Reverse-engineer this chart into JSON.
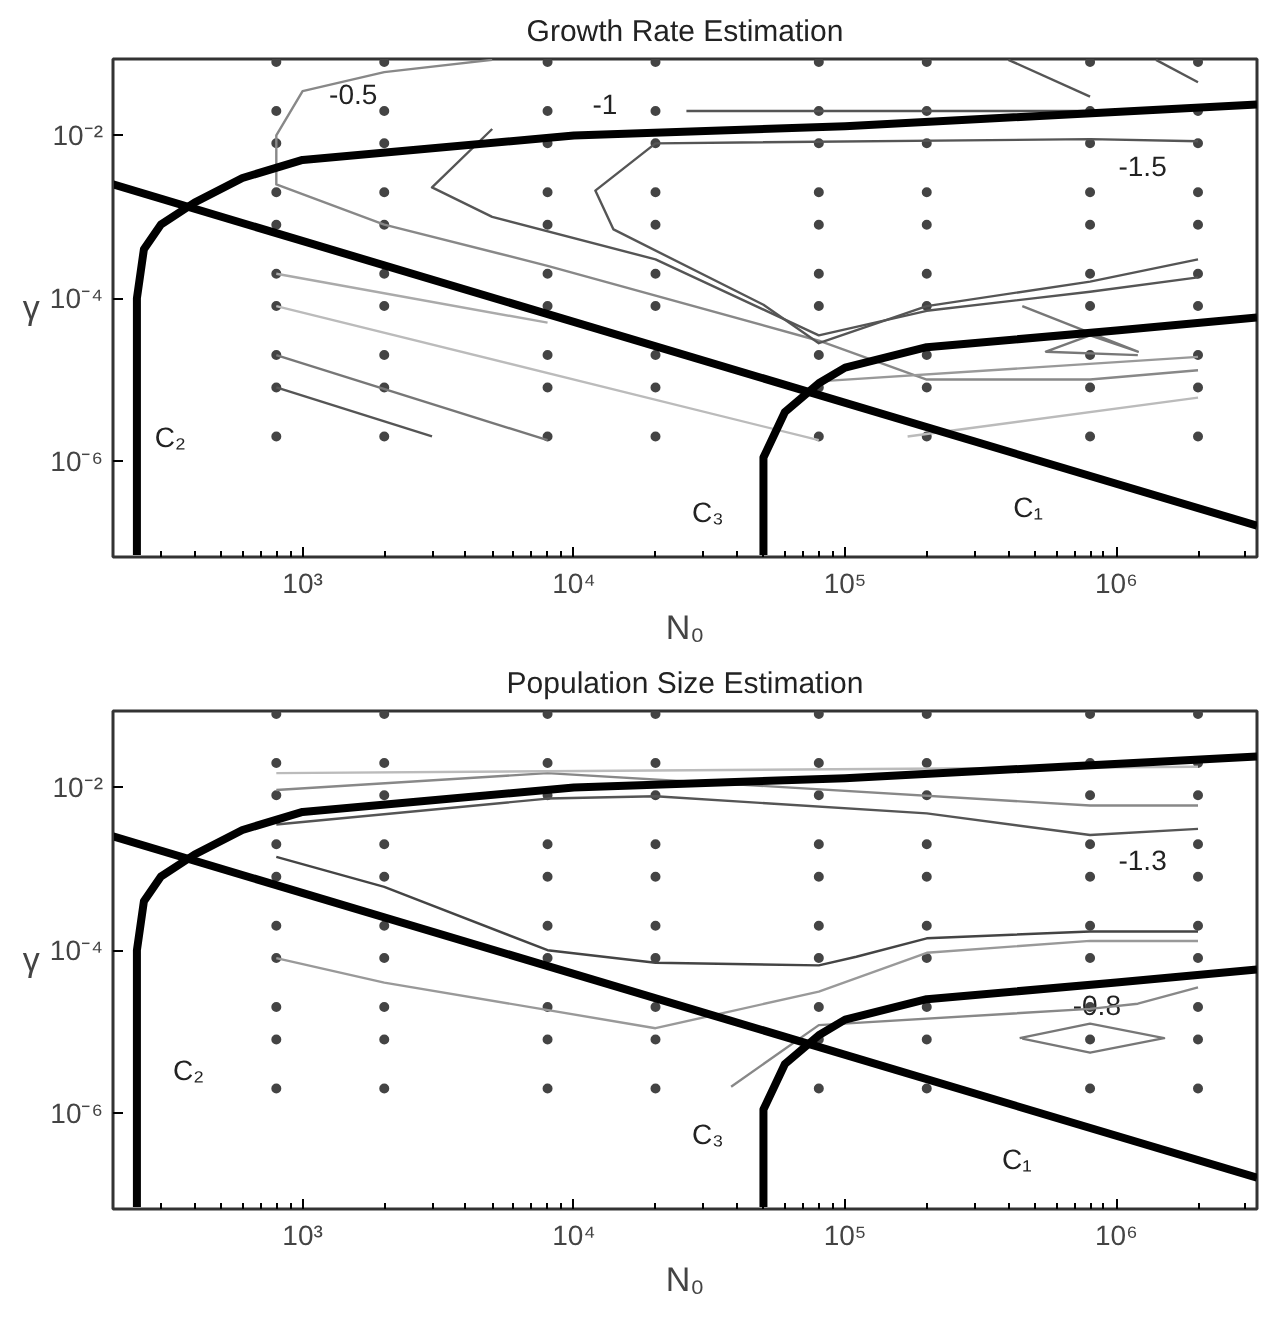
{
  "chart_data": [
    {
      "type": "line",
      "title": "Growth Rate Estimation",
      "xlabel": "N₀",
      "ylabel": "γ",
      "log": "xy",
      "grid": false,
      "marker": "none",
      "line_style": "solid",
      "xlim": [
        200,
        3300000
      ],
      "ylim": [
        6.6e-08,
        0.087
      ],
      "xticks": [
        {
          "value": 1000,
          "label": "10³"
        },
        {
          "value": 10000,
          "label": "10⁴"
        },
        {
          "value": 100000,
          "label": "10⁵"
        },
        {
          "value": 1000000,
          "label": "10⁶"
        }
      ],
      "yticks": [
        {
          "value": 0.01,
          "label": "10⁻²"
        },
        {
          "value": 0.0001,
          "label": "10⁻⁴"
        },
        {
          "value": 1e-06,
          "label": "10⁻⁶"
        }
      ],
      "annotations": [
        "-0.5",
        "-1",
        "-1.5",
        "C₂",
        "C₃",
        "C₁"
      ],
      "series": [
        {
          "type": "scatter",
          "marker": "circle",
          "color": "#444444",
          "x": [
            800,
            2000,
            8000,
            20000,
            80000,
            200000,
            800000,
            2000000,
            800,
            2000,
            8000,
            20000,
            80000,
            200000,
            800000,
            2000000,
            800,
            2000,
            8000,
            20000,
            80000,
            200000,
            800000,
            2000000,
            800,
            2000,
            8000,
            20000,
            80000,
            200000,
            800000,
            2000000,
            800,
            2000,
            8000,
            20000,
            80000,
            200000,
            800000,
            2000000,
            800,
            2000,
            8000,
            20000,
            80000,
            200000,
            800000,
            2000000,
            800,
            2000,
            8000,
            20000,
            80000,
            200000,
            800000,
            2000000,
            800,
            2000,
            8000,
            20000,
            80000,
            200000,
            800000,
            2000000,
            800,
            2000,
            8000,
            20000,
            80000,
            200000,
            800000,
            2000000,
            800,
            2000,
            8000,
            20000,
            80000,
            200000,
            800000,
            2000000
          ],
          "values": [
            0.08,
            0.08,
            0.08,
            0.08,
            0.08,
            0.08,
            0.08,
            0.08,
            0.02,
            0.02,
            0.02,
            0.02,
            0.02,
            0.02,
            0.02,
            0.02,
            0.008,
            0.008,
            0.008,
            0.008,
            0.008,
            0.008,
            0.008,
            0.008,
            0.002,
            0.002,
            0.002,
            0.002,
            0.002,
            0.002,
            0.002,
            0.002,
            0.0008,
            0.0008,
            0.0008,
            0.0008,
            0.0008,
            0.0008,
            0.0008,
            0.0008,
            0.0002,
            0.0002,
            0.0002,
            0.0002,
            0.0002,
            0.0002,
            0.0002,
            0.0002,
            8e-05,
            8e-05,
            8e-05,
            8e-05,
            8e-05,
            8e-05,
            8e-05,
            8e-05,
            2e-05,
            2e-05,
            2e-05,
            2e-05,
            2e-05,
            2e-05,
            2e-05,
            2e-05,
            8e-06,
            8e-06,
            8e-06,
            8e-06,
            8e-06,
            8e-06,
            8e-06,
            8e-06,
            2e-06,
            2e-06,
            2e-06,
            2e-06,
            2e-06,
            2e-06,
            2e-06,
            2e-06
          ]
        },
        {
          "color": "#888888",
          "x": [
            5000,
            2000,
            1000,
            800,
            800,
            2000,
            8000,
            80000,
            200000,
            800000,
            2000000
          ],
          "values": [
            0.085,
            0.06,
            0.035,
            0.01,
            0.0025,
            0.0008,
            0.00025,
            3e-05,
            1e-05,
            1e-05,
            1.3e-05
          ]
        },
        {
          "color": "#555555",
          "x": [
            5000,
            3000,
            5000,
            20000,
            80000,
            200000,
            800000,
            2000000
          ],
          "values": [
            0.012,
            0.0023,
            0.001,
            0.0003,
            3.5e-05,
            7e-05,
            0.00012,
            0.00018
          ]
        },
        {
          "color": "#555555",
          "x": [
            2000000,
            800000,
            20000,
            12000,
            14000,
            50000,
            80000,
            200000,
            800000,
            2000000
          ],
          "values": [
            0.0085,
            0.009,
            0.008,
            0.0021,
            0.0007,
            8.3e-05,
            2.8e-05,
            8e-05,
            0.00016,
            0.0003
          ]
        },
        {
          "color": "#555555",
          "x": [
            26000,
            800000
          ],
          "values": [
            0.02,
            0.02
          ]
        },
        {
          "color": "#555555",
          "x": [
            400000,
            800000
          ],
          "values": [
            0.085,
            0.03
          ]
        },
        {
          "color": "#555555",
          "x": [
            1400000,
            2000000
          ],
          "values": [
            0.085,
            0.045
          ]
        },
        {
          "color": "#777777",
          "x": [
            450000,
            1200000,
            800000,
            550000,
            1200000
          ],
          "values": [
            8e-05,
            2.2e-05,
            3.5e-05,
            2.2e-05,
            2e-05
          ]
        },
        {
          "color": "#aaaaaa",
          "x": [
            800,
            8000
          ],
          "values": [
            0.0002,
            5e-05
          ]
        },
        {
          "color": "#bbbbbb",
          "x": [
            800,
            80000
          ],
          "values": [
            8e-05,
            1.8e-06
          ]
        },
        {
          "color": "#777777",
          "x": [
            800,
            8000
          ],
          "values": [
            2e-05,
            1.8e-06
          ]
        },
        {
          "color": "#555555",
          "x": [
            800,
            3000
          ],
          "values": [
            8e-06,
            2e-06
          ]
        },
        {
          "color": "#999999",
          "x": [
            80000,
            2000000
          ],
          "values": [
            9.5e-06,
            1.9e-05
          ]
        },
        {
          "color": "#bbbbbb",
          "x": [
            170000,
            2000000
          ],
          "values": [
            2e-06,
            6e-06
          ]
        },
        {
          "color": "#000000",
          "x": [
            200,
            3300000
          ],
          "values": [
            0.0025,
            1.6e-07
          ]
        },
        {
          "color": "#000000",
          "x": [
            245,
            245,
            260,
            300,
            400,
            600,
            1000,
            10000,
            100000,
            3300000
          ],
          "values": [
            7e-08,
            0.0001,
            0.0004,
            0.0008,
            0.0015,
            0.003,
            0.005,
            0.01,
            0.013,
            0.024
          ]
        },
        {
          "color": "#000000",
          "x": [
            50000,
            50000,
            60000,
            80000,
            100000,
            200000,
            1000000,
            3300000
          ],
          "values": [
            7e-08,
            1.1e-06,
            4e-06,
            9e-06,
            1.4e-05,
            2.5e-05,
            4e-05,
            5.8e-05
          ]
        }
      ]
    },
    {
      "type": "line",
      "title": "Population Size Estimation",
      "xlabel": "N₀",
      "ylabel": "γ",
      "log": "xy",
      "grid": false,
      "marker": "none",
      "line_style": "solid",
      "xlim": [
        200,
        3300000
      ],
      "ylim": [
        6.6e-08,
        0.087
      ],
      "xticks": [
        {
          "value": 1000,
          "label": "10³"
        },
        {
          "value": 10000,
          "label": "10⁴"
        },
        {
          "value": 100000,
          "label": "10⁵"
        },
        {
          "value": 1000000,
          "label": "10⁶"
        }
      ],
      "yticks": [
        {
          "value": 0.01,
          "label": "10⁻²"
        },
        {
          "value": 0.0001,
          "label": "10⁻⁴"
        },
        {
          "value": 1e-06,
          "label": "10⁻⁶"
        }
      ],
      "annotations": [
        "-1.3",
        "-0.8",
        "C₂",
        "C₃",
        "C₁"
      ],
      "series": [
        {
          "type": "scatter",
          "marker": "circle",
          "color": "#444444",
          "x": [
            800,
            2000,
            8000,
            20000,
            80000,
            200000,
            800000,
            2000000,
            800,
            2000,
            8000,
            20000,
            80000,
            200000,
            800000,
            2000000,
            800,
            2000,
            8000,
            20000,
            80000,
            200000,
            800000,
            2000000,
            800,
            2000,
            8000,
            20000,
            80000,
            200000,
            800000,
            2000000,
            800,
            2000,
            8000,
            20000,
            80000,
            200000,
            800000,
            2000000,
            800,
            2000,
            8000,
            20000,
            80000,
            200000,
            800000,
            2000000,
            800,
            2000,
            8000,
            20000,
            80000,
            200000,
            800000,
            2000000,
            800,
            2000,
            8000,
            20000,
            80000,
            200000,
            800000,
            2000000,
            800,
            2000,
            8000,
            20000,
            80000,
            200000,
            800000,
            2000000,
            800,
            2000,
            8000,
            20000,
            80000,
            200000,
            800000,
            2000000
          ],
          "values": [
            0.08,
            0.08,
            0.08,
            0.08,
            0.08,
            0.08,
            0.08,
            0.08,
            0.02,
            0.02,
            0.02,
            0.02,
            0.02,
            0.02,
            0.02,
            0.02,
            0.008,
            0.008,
            0.008,
            0.008,
            0.008,
            0.008,
            0.008,
            0.008,
            0.002,
            0.002,
            0.002,
            0.002,
            0.002,
            0.002,
            0.002,
            0.002,
            0.0008,
            0.0008,
            0.0008,
            0.0008,
            0.0008,
            0.0008,
            0.0008,
            0.0008,
            0.0002,
            0.0002,
            0.0002,
            0.0002,
            0.0002,
            0.0002,
            0.0002,
            0.0002,
            8e-05,
            8e-05,
            8e-05,
            8e-05,
            8e-05,
            8e-05,
            8e-05,
            8e-05,
            2e-05,
            2e-05,
            2e-05,
            2e-05,
            2e-05,
            2e-05,
            2e-05,
            2e-05,
            8e-06,
            8e-06,
            8e-06,
            8e-06,
            8e-06,
            8e-06,
            8e-06,
            8e-06,
            2e-06,
            2e-06,
            2e-06,
            2e-06,
            2e-06,
            2e-06,
            2e-06,
            2e-06
          ]
        },
        {
          "color": "#555555",
          "x": [
            800,
            8000,
            20000,
            200000,
            800000,
            2000000
          ],
          "values": [
            0.0035,
            0.0073,
            0.0078,
            0.0048,
            0.0026,
            0.0031
          ]
        },
        {
          "color": "#888888",
          "x": [
            800,
            8000,
            800000,
            2000000
          ],
          "values": [
            0.0093,
            0.015,
            0.006,
            0.006
          ]
        },
        {
          "color": "#bbbbbb",
          "x": [
            800,
            2000000
          ],
          "values": [
            0.015,
            0.018
          ]
        },
        {
          "color": "#444444",
          "x": [
            800,
            2000,
            8000,
            20000,
            80000,
            110000,
            200000,
            800000,
            2000000
          ],
          "values": [
            0.0014,
            0.0006,
            0.0001,
            7e-05,
            6.5e-05,
            8.3e-05,
            0.00014,
            0.00017,
            0.00017
          ]
        },
        {
          "color": "#999999",
          "x": [
            800,
            2000,
            20000,
            80000,
            200000,
            800000,
            2000000
          ],
          "values": [
            8e-05,
            4e-05,
            1.1e-05,
            3.1e-05,
            9.3e-05,
            0.00013,
            0.00013
          ]
        },
        {
          "color": "#888888",
          "x": [
            38000,
            80000,
            800000,
            1200000,
            2000000
          ],
          "values": [
            2.1e-06,
            1.2e-05,
            1.9e-05,
            2.2e-05,
            3.5e-05
          ]
        },
        {
          "color": "#777777",
          "x": [
            440000,
            800000,
            1500000,
            800000,
            450000
          ],
          "values": [
            8.3e-06,
            1.25e-05,
            8.3e-06,
            5.5e-06,
            8.2e-06
          ]
        },
        {
          "color": "#000000",
          "x": [
            200,
            3300000
          ],
          "values": [
            0.0025,
            1.6e-07
          ]
        },
        {
          "color": "#000000",
          "x": [
            245,
            245,
            260,
            300,
            400,
            600,
            1000,
            10000,
            100000,
            3300000
          ],
          "values": [
            7e-08,
            0.0001,
            0.0004,
            0.0008,
            0.0015,
            0.003,
            0.005,
            0.01,
            0.013,
            0.024
          ]
        },
        {
          "color": "#000000",
          "x": [
            50000,
            50000,
            60000,
            80000,
            100000,
            200000,
            1000000,
            3300000
          ],
          "values": [
            7e-08,
            1.1e-06,
            4e-06,
            9e-06,
            1.4e-05,
            2.5e-05,
            4e-05,
            5.8e-05
          ]
        }
      ]
    }
  ]
}
